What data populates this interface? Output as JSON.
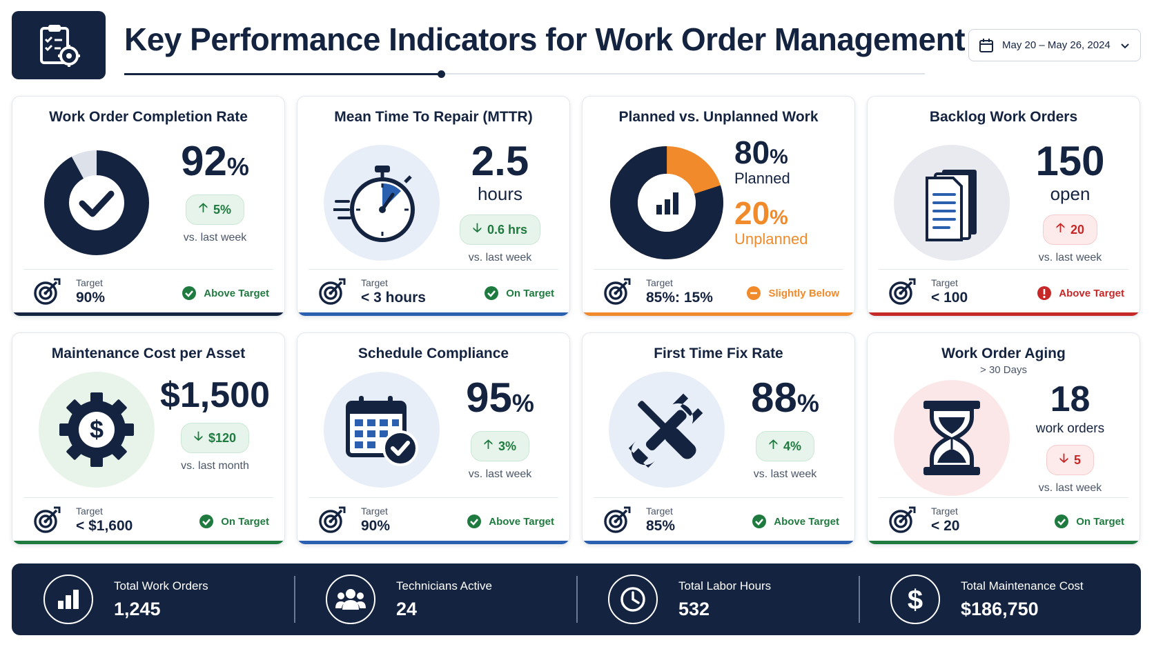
{
  "header": {
    "title": "Key Performance Indicators for Work Order Management",
    "date_range": "May 20 – May 26, 2024"
  },
  "colors": {
    "navy": "#14233f",
    "green": "#1f7a3f",
    "orange": "#f18a2a",
    "red": "#c62828",
    "blue_accent": "#2b5fb0"
  },
  "cards": [
    {
      "title": "Work Order Completion Rate",
      "icon": "donut-check-icon",
      "value": "92",
      "unit": "%",
      "progress_fraction": 0.92,
      "delta": "5%",
      "delta_direction": "up",
      "delta_sentiment": "good",
      "comparison": "vs. last week",
      "target_label": "Target",
      "target_value": "90%",
      "status": "Above Target",
      "status_color": "green"
    },
    {
      "title": "Mean Time To Repair (MTTR)",
      "icon": "stopwatch-icon",
      "value": "2.5",
      "unit_line": "hours",
      "delta": "0.6 hrs",
      "delta_direction": "down",
      "delta_sentiment": "good",
      "comparison": "vs. last week",
      "target_label": "Target",
      "target_value": "< 3 hours",
      "status": "On Target",
      "status_color": "green"
    },
    {
      "title": "Planned vs. Unplanned Work",
      "icon": "pie-chart-icon",
      "planned_value": "80",
      "planned_unit": "%",
      "planned_label": "Planned",
      "unplanned_value": "20",
      "unplanned_unit": "%",
      "unplanned_label": "Unplanned",
      "planned_fraction": 0.8,
      "target_label": "Target",
      "target_value": "85%: 15%",
      "status": "Slightly Below",
      "status_color": "orange"
    },
    {
      "title": "Backlog Work Orders",
      "icon": "documents-icon",
      "value": "150",
      "unit_line": "open",
      "delta": "20",
      "delta_direction": "up",
      "delta_sentiment": "bad",
      "comparison": "vs. last week",
      "target_label": "Target",
      "target_value": "< 100",
      "status": "Above Target",
      "status_color": "red"
    },
    {
      "title": "Maintenance Cost per Asset",
      "icon": "gear-dollar-icon",
      "value": "$1,500",
      "delta": "$120",
      "delta_direction": "down",
      "delta_sentiment": "good",
      "comparison": "vs. last month",
      "target_label": "Target",
      "target_value": "< $1,600",
      "status": "On Target",
      "status_color": "green"
    },
    {
      "title": "Schedule Compliance",
      "icon": "calendar-check-icon",
      "value": "95",
      "unit": "%",
      "delta": "3%",
      "delta_direction": "up",
      "delta_sentiment": "good",
      "comparison": "vs. last week",
      "target_label": "Target",
      "target_value": "90%",
      "status": "Above Target",
      "status_color": "green"
    },
    {
      "title": "First Time Fix Rate",
      "icon": "wrench-screwdriver-icon",
      "value": "88",
      "unit": "%",
      "delta": "4%",
      "delta_direction": "up",
      "delta_sentiment": "good",
      "comparison": "vs. last week",
      "target_label": "Target",
      "target_value": "85%",
      "status": "Above Target",
      "status_color": "green"
    },
    {
      "title": "Work Order Aging",
      "subtitle": "> 30 Days",
      "icon": "hourglass-icon",
      "value": "18",
      "unit_line": "work orders",
      "delta": "5",
      "delta_direction": "down",
      "delta_sentiment": "bad",
      "comparison": "vs. last week",
      "target_label": "Target",
      "target_value": "< 20",
      "status": "On Target",
      "status_color": "green"
    }
  ],
  "summary": [
    {
      "label": "Total Work Orders",
      "value": "1,245",
      "icon": "bar-chart-icon"
    },
    {
      "label": "Technicians Active",
      "value": "24",
      "icon": "users-icon"
    },
    {
      "label": "Total Labor Hours",
      "value": "532",
      "icon": "clock-icon"
    },
    {
      "label": "Total Maintenance Cost",
      "value": "$186,750",
      "icon": "dollar-icon"
    }
  ]
}
